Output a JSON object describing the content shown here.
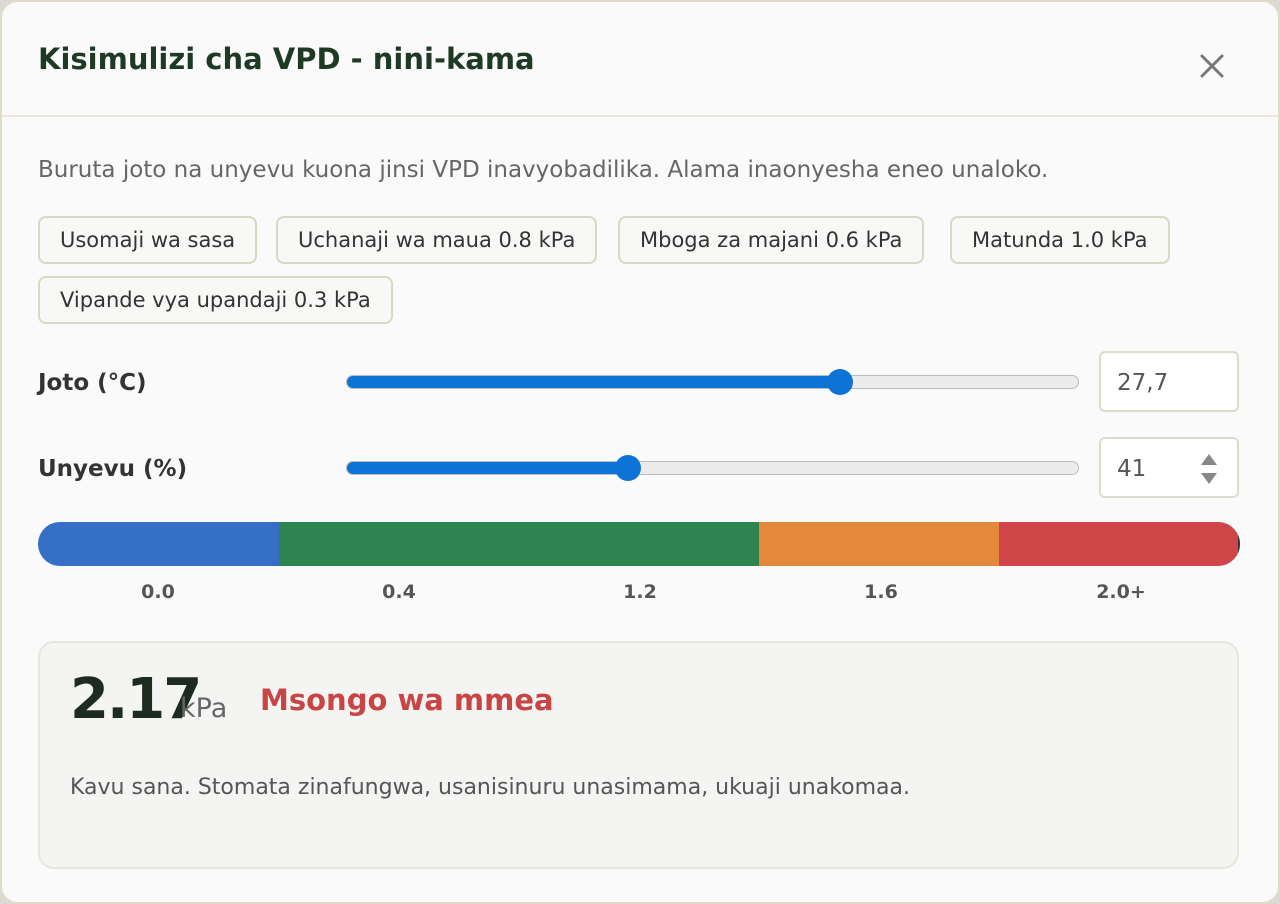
{
  "header": {
    "title": "Kisimulizi cha VPD - nini-kama"
  },
  "intro": "Buruta joto na unyevu kuona jinsi VPD inavyobadilika. Alama inaonyesha eneo unaloko.",
  "presets": [
    "Usomaji wa sasa",
    "Uchanaji wa maua 0.8 kPa",
    "Mboga za majani 0.6 kPa",
    "Matunda 1.0 kPa",
    "Vipande vya upandaji 0.3 kPa"
  ],
  "sliders": [
    {
      "label": "Joto (°C)",
      "value": "27,7"
    },
    {
      "label": "Unyevu (%)",
      "value": "41"
    }
  ],
  "scale": {
    "labels": [
      "0.0",
      "0.4",
      "1.2",
      "1.6",
      "2.0+"
    ]
  },
  "result": {
    "value": "2.17",
    "unit": "kPa",
    "status": "Msongo wa mmea",
    "description": "Kavu sana. Stomata zinafungwa, usanisinuru unasimama, ukuaji unakomaa."
  }
}
